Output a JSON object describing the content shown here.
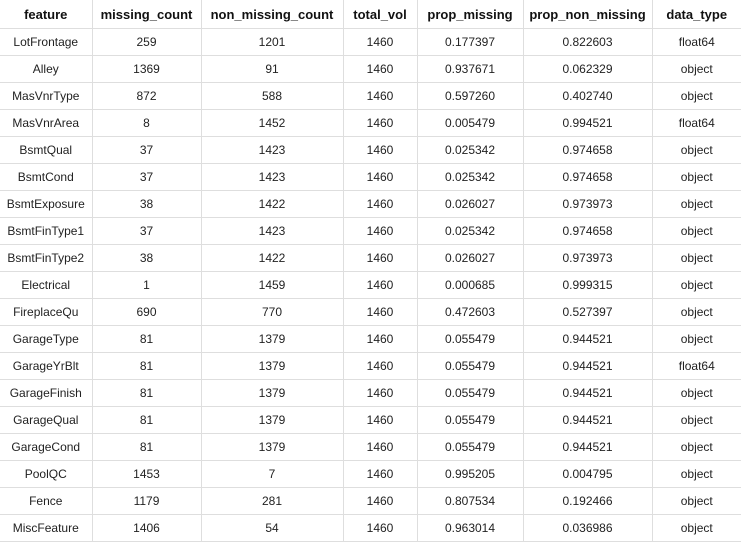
{
  "table": {
    "columns": [
      "feature",
      "missing_count",
      "non_missing_count",
      "total_vol",
      "prop_missing",
      "prop_non_missing",
      "data_type"
    ],
    "rows": [
      [
        "LotFrontage",
        "259",
        "1201",
        "1460",
        "0.177397",
        "0.822603",
        "float64"
      ],
      [
        "Alley",
        "1369",
        "91",
        "1460",
        "0.937671",
        "0.062329",
        "object"
      ],
      [
        "MasVnrType",
        "872",
        "588",
        "1460",
        "0.597260",
        "0.402740",
        "object"
      ],
      [
        "MasVnrArea",
        "8",
        "1452",
        "1460",
        "0.005479",
        "0.994521",
        "float64"
      ],
      [
        "BsmtQual",
        "37",
        "1423",
        "1460",
        "0.025342",
        "0.974658",
        "object"
      ],
      [
        "BsmtCond",
        "37",
        "1423",
        "1460",
        "0.025342",
        "0.974658",
        "object"
      ],
      [
        "BsmtExposure",
        "38",
        "1422",
        "1460",
        "0.026027",
        "0.973973",
        "object"
      ],
      [
        "BsmtFinType1",
        "37",
        "1423",
        "1460",
        "0.025342",
        "0.974658",
        "object"
      ],
      [
        "BsmtFinType2",
        "38",
        "1422",
        "1460",
        "0.026027",
        "0.973973",
        "object"
      ],
      [
        "Electrical",
        "1",
        "1459",
        "1460",
        "0.000685",
        "0.999315",
        "object"
      ],
      [
        "FireplaceQu",
        "690",
        "770",
        "1460",
        "0.472603",
        "0.527397",
        "object"
      ],
      [
        "GarageType",
        "81",
        "1379",
        "1460",
        "0.055479",
        "0.944521",
        "object"
      ],
      [
        "GarageYrBlt",
        "81",
        "1379",
        "1460",
        "0.055479",
        "0.944521",
        "float64"
      ],
      [
        "GarageFinish",
        "81",
        "1379",
        "1460",
        "0.055479",
        "0.944521",
        "object"
      ],
      [
        "GarageQual",
        "81",
        "1379",
        "1460",
        "0.055479",
        "0.944521",
        "object"
      ],
      [
        "GarageCond",
        "81",
        "1379",
        "1460",
        "0.055479",
        "0.944521",
        "object"
      ],
      [
        "PoolQC",
        "1453",
        "7",
        "1460",
        "0.995205",
        "0.004795",
        "object"
      ],
      [
        "Fence",
        "1179",
        "281",
        "1460",
        "0.807534",
        "0.192466",
        "object"
      ],
      [
        "MiscFeature",
        "1406",
        "54",
        "1460",
        "0.963014",
        "0.036986",
        "object"
      ]
    ]
  }
}
